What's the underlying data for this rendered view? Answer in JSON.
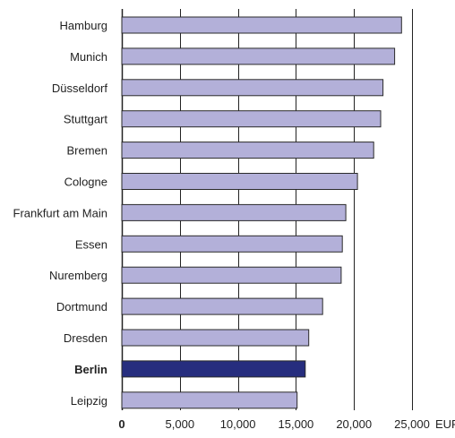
{
  "chart_data": {
    "type": "bar",
    "orientation": "horizontal",
    "categories": [
      "Hamburg",
      "Munich",
      "Düsseldorf",
      "Stuttgart",
      "Bremen",
      "Cologne",
      "Frankfurt am Main",
      "Essen",
      "Nuremberg",
      "Dortmund",
      "Dresden",
      "Berlin",
      "Leipzig"
    ],
    "values": [
      24100,
      23500,
      22500,
      22300,
      21700,
      20300,
      19300,
      19000,
      18900,
      17300,
      16100,
      15800,
      15100
    ],
    "highlight": "Berlin",
    "x_ticks": [
      "0",
      "5,000",
      "10,000",
      "15,000",
      "20,000",
      "25,000"
    ],
    "x_unit": "EUR",
    "xlim": [
      0,
      25000
    ],
    "grid": "vertical",
    "colors": {
      "bar": "#b3b0d9",
      "bar_highlight": "#262d7e",
      "bar_stroke": "#2a2a2a",
      "grid": "#222222"
    }
  }
}
